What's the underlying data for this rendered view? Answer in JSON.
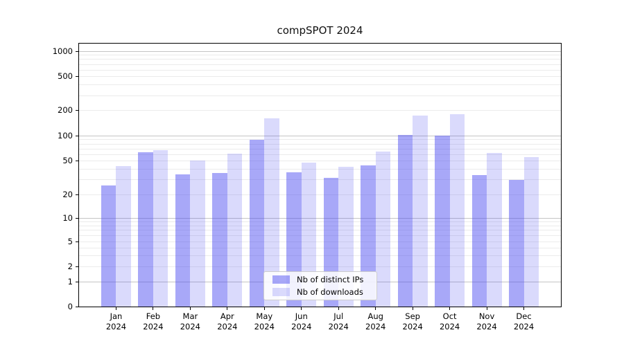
{
  "title": "compSPOT 2024",
  "chart_data": {
    "type": "bar",
    "title": "compSPOT 2024",
    "categories": [
      "Jan",
      "Feb",
      "Mar",
      "Apr",
      "May",
      "Jun",
      "Jul",
      "Aug",
      "Sep",
      "Oct",
      "Nov",
      "Dec"
    ],
    "category_year": "2024",
    "series": [
      {
        "name": "Nb of distinct IPs",
        "color": "rgba(70,70,240,0.47)",
        "values": [
          26,
          64,
          35,
          36,
          90,
          37,
          32,
          45,
          103,
          100,
          34,
          30
        ]
      },
      {
        "name": "Nb of downloads",
        "color": "rgba(70,70,240,0.20)",
        "values": [
          44,
          68,
          51,
          61,
          162,
          48,
          43,
          65,
          175,
          180,
          63,
          56
        ]
      }
    ],
    "yscale": "symlog",
    "yticks": [
      0,
      1,
      2,
      5,
      10,
      20,
      50,
      100,
      200,
      500,
      1000
    ],
    "ylim": [
      0,
      1175
    ],
    "xlabel": "",
    "ylabel": "",
    "grid": "on",
    "legend_position": "lower-center-inside",
    "colors": {
      "major_grid": "#c4c4c4",
      "minor_grid": "#ebebeb",
      "axis": "#000000",
      "text": "#000000",
      "legend_border": "#cccccc"
    }
  }
}
